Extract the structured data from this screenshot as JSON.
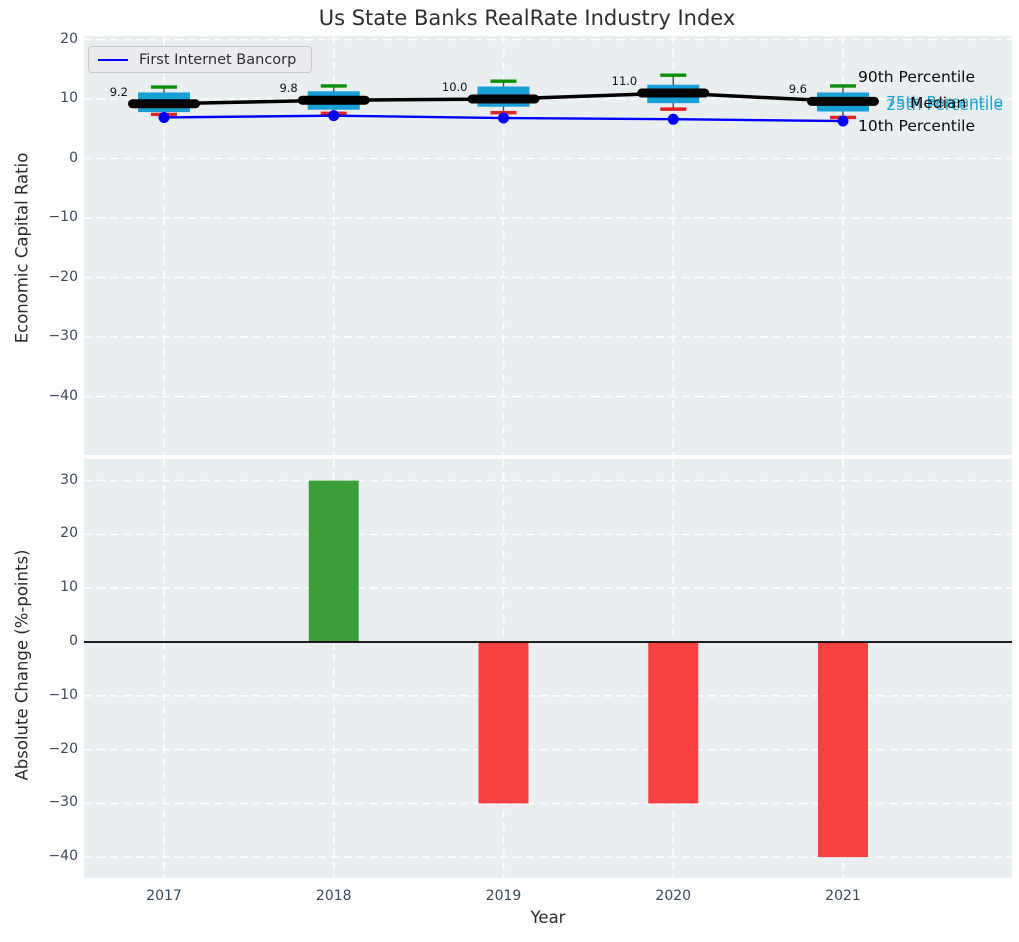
{
  "title": "Us State Banks RealRate Industry Index",
  "legend": {
    "label": "First Internet Bancorp"
  },
  "annotations": {
    "p90": "90th Percentile",
    "p75": "75th Percentile",
    "median_label": "Median",
    "p25": "25th Percentile",
    "p10": "10th Percentile"
  },
  "colors": {
    "figure_bg": "#ffffff",
    "axes_bg": "#e9eef0",
    "grid": "#ffffff",
    "box_fill": "#189fd6",
    "cap_high_green": "#0a8f0a",
    "cap_low_red": "#e32222",
    "whisker_gray": "#4a4a4a",
    "median_black": "#000000",
    "company_blue": "#0000ff",
    "bar_positive_green": "#3b9e3b",
    "bar_negative_red": "#f94141",
    "zero_line": "#000000",
    "tick_text": "#3c4a5e",
    "label_text": "#2b2b2b",
    "annotation_cyan": "#25a5d2"
  },
  "chart_data": [
    {
      "type": "boxplot-line",
      "ylabel": "Economic Capital Ratio",
      "categories": [
        "2017",
        "2018",
        "2019",
        "2020",
        "2021"
      ],
      "yticks": [
        20,
        10,
        0,
        -10,
        -20,
        -30,
        -40
      ],
      "ylim": [
        -49.5,
        20.6
      ],
      "grid": true,
      "legend_position": "upper left",
      "median": [
        9.2,
        9.8,
        10.0,
        11.0,
        9.6
      ],
      "median_labels": [
        "9.2",
        "9.8",
        "10.0",
        "11.0",
        "9.6"
      ],
      "p90": [
        12.0,
        12.2,
        13.0,
        14.0,
        12.2
      ],
      "p75": [
        11.1,
        11.3,
        12.1,
        12.4,
        11.1
      ],
      "p25": [
        7.8,
        8.2,
        8.7,
        9.3,
        7.9
      ],
      "p10": [
        7.4,
        7.6,
        7.7,
        8.3,
        6.9
      ],
      "company": {
        "name": "First Internet Bancorp",
        "values": [
          6.9,
          7.2,
          6.8,
          6.6,
          6.3
        ]
      }
    },
    {
      "type": "bar",
      "ylabel": "Absolute Change (%-points)",
      "xlabel": "Year",
      "categories": [
        "2017",
        "2018",
        "2019",
        "2020",
        "2021"
      ],
      "yticks": [
        30,
        20,
        10,
        0,
        -10,
        -20,
        -30,
        -40
      ],
      "ylim": [
        -43.9,
        34.0
      ],
      "grid": true,
      "values": [
        null,
        30,
        -30,
        -30,
        -40
      ],
      "bar_signs": [
        "none",
        "positive",
        "negative",
        "negative",
        "negative"
      ]
    }
  ]
}
